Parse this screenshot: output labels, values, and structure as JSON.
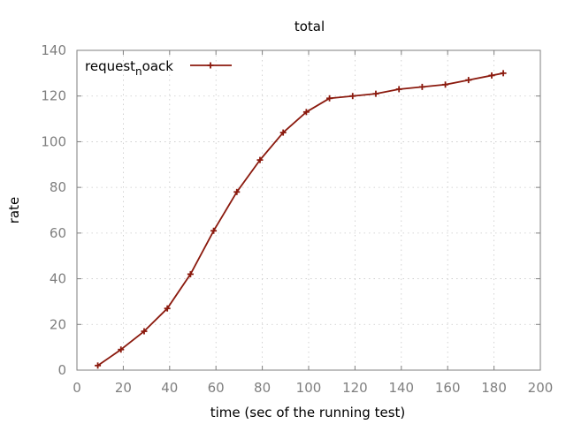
{
  "chart_data": {
    "type": "line",
    "title": "total",
    "xlabel": "time (sec of the running test)",
    "ylabel": "rate",
    "xlim": [
      0,
      200
    ],
    "ylim": [
      0,
      140
    ],
    "xticks": [
      0,
      20,
      40,
      60,
      80,
      100,
      120,
      140,
      160,
      180,
      200
    ],
    "yticks": [
      0,
      20,
      40,
      60,
      80,
      100,
      120,
      140
    ],
    "grid": true,
    "legend_position": "top-left",
    "series": [
      {
        "name_parts": [
          "request",
          "n",
          "oack"
        ],
        "color": "#8b1a0e",
        "marker": "plus",
        "x": [
          9,
          19,
          29,
          39,
          49,
          59,
          69,
          79,
          89,
          99,
          109,
          119,
          129,
          139,
          149,
          159,
          169,
          179,
          184
        ],
        "y": [
          2,
          9,
          17,
          27,
          42,
          61,
          78,
          92,
          104,
          113,
          119,
          120,
          121,
          123,
          124,
          125,
          127,
          129,
          130
        ]
      }
    ]
  }
}
